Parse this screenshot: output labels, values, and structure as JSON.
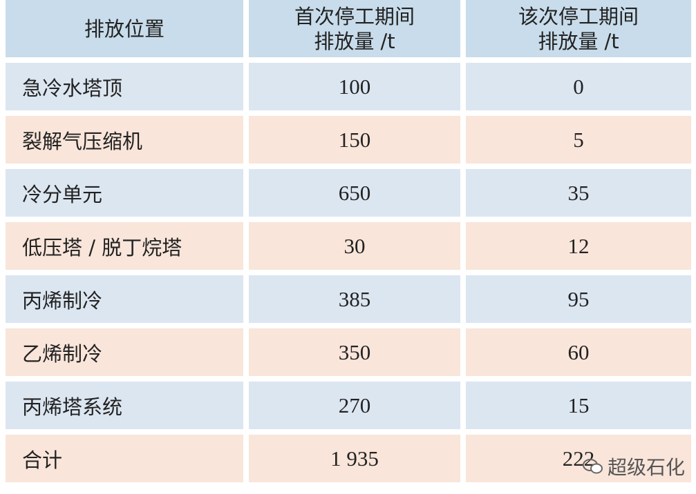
{
  "table": {
    "header": [
      [
        "排放位置"
      ],
      [
        "首次停工期间",
        "排放量 /t"
      ],
      [
        "该次停工期间",
        "排放量 /t"
      ]
    ],
    "rows": [
      [
        "急冷水塔顶",
        "100",
        "0"
      ],
      [
        "裂解气压缩机",
        "150",
        "5"
      ],
      [
        "冷分单元",
        "650",
        "35"
      ],
      [
        "低压塔 / 脱丁烷塔",
        "30",
        "12"
      ],
      [
        "丙烯制冷",
        "385",
        "95"
      ],
      [
        "乙烯制冷",
        "350",
        "60"
      ],
      [
        "丙烯塔系统",
        "270",
        "15"
      ],
      [
        "合计",
        "1 935",
        "222"
      ]
    ]
  },
  "watermark": "超级石化"
}
